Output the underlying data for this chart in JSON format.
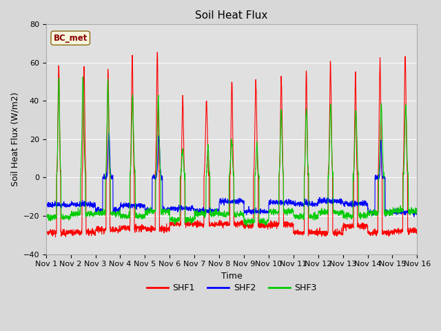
{
  "title": "Soil Heat Flux",
  "xlabel": "Time",
  "ylabel": "Soil Heat Flux (W/m2)",
  "ylim": [
    -40,
    80
  ],
  "x_tick_labels": [
    "Nov 1",
    "Nov 2",
    "Nov 3",
    "Nov 4",
    "Nov 5",
    "Nov 6",
    "Nov 7",
    "Nov 8",
    "Nov 9",
    "Nov 10",
    "Nov 11",
    "Nov 12",
    "Nov 13",
    "Nov 14",
    "Nov 15",
    "Nov 16"
  ],
  "legend_label": "BC_met",
  "series_labels": [
    "SHF1",
    "SHF2",
    "SHF3"
  ],
  "series_colors": [
    "#ff0000",
    "#0000ff",
    "#00cc00"
  ],
  "background_color": "#d8d8d8",
  "plot_bg_color": "#e0e0e0",
  "title_fontsize": 11,
  "label_fontsize": 9,
  "tick_fontsize": 8,
  "n_days": 15,
  "points_per_day": 144,
  "shf1_day_amps": [
    58,
    59,
    57,
    63,
    65,
    42,
    40,
    51,
    50,
    52,
    56,
    60,
    56,
    61,
    63
  ],
  "shf2_day_amps": [
    0,
    0,
    23,
    0,
    22,
    0,
    0,
    0,
    0,
    0,
    0,
    0,
    0,
    20,
    0
  ],
  "shf3_day_amps": [
    52,
    52,
    50,
    42,
    42,
    15,
    16,
    20,
    18,
    35,
    37,
    38,
    35,
    38,
    38
  ],
  "shf1_night": -28,
  "shf2_night": -15,
  "shf3_night": -20
}
